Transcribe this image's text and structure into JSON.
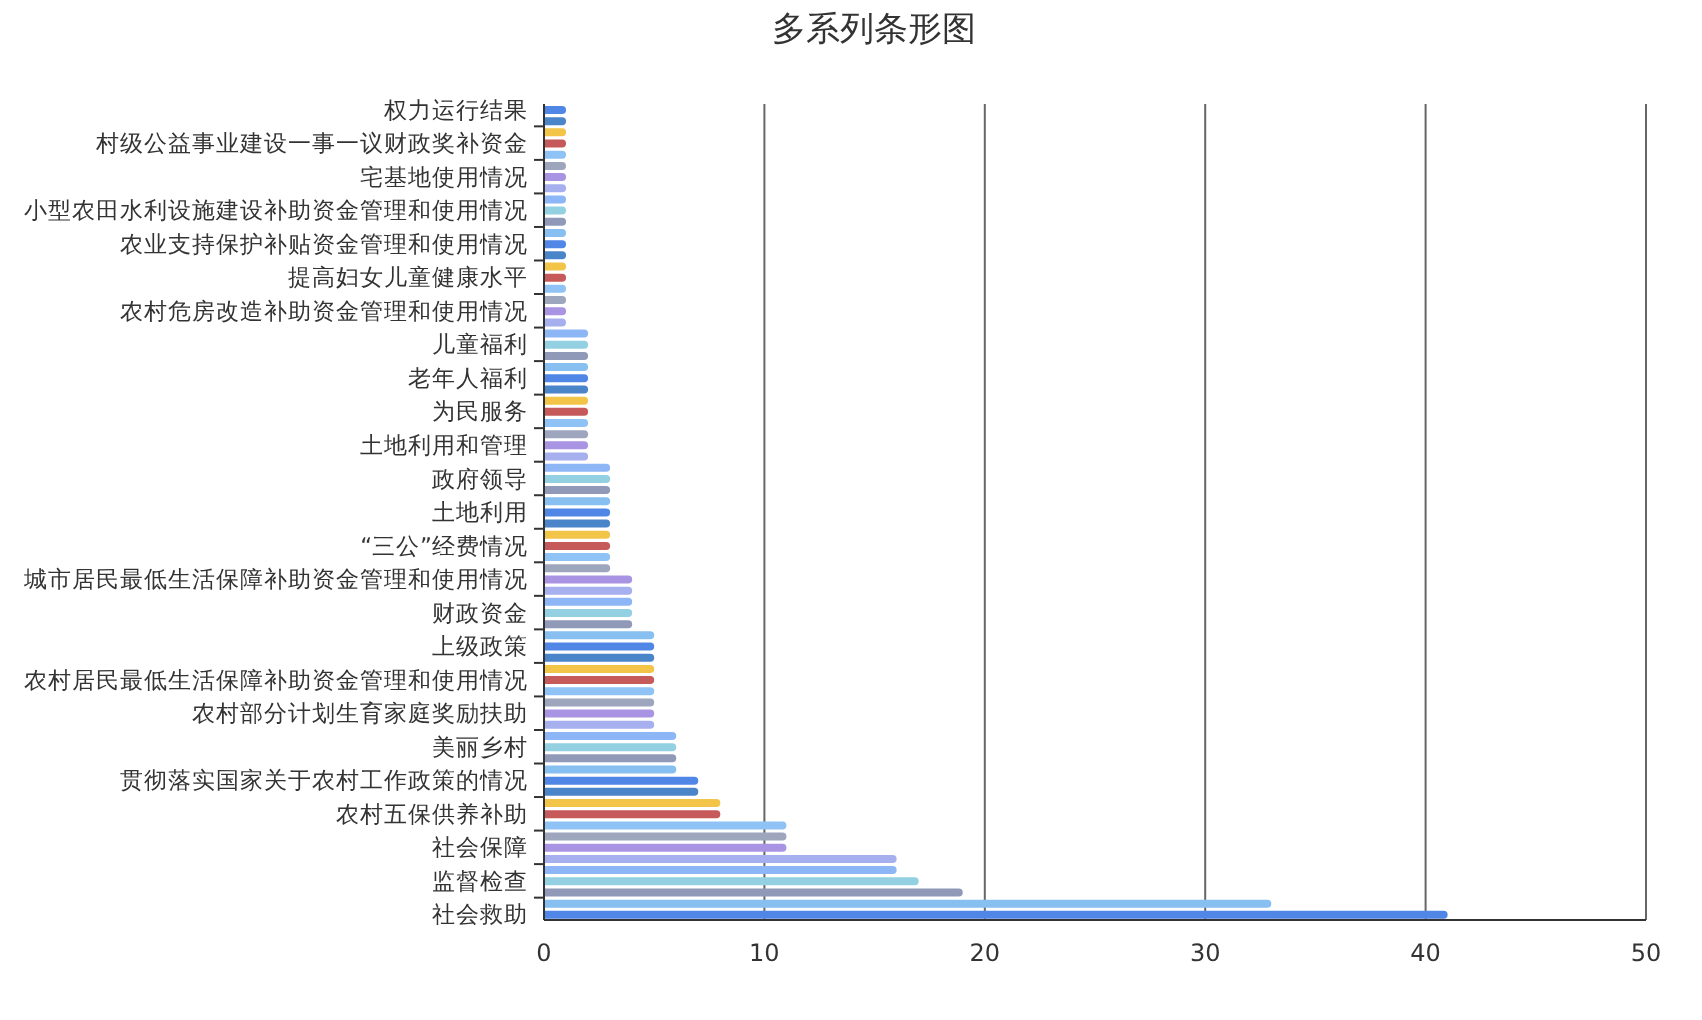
{
  "chart_data": {
    "type": "bar",
    "orientation": "horizontal",
    "title": "多系列条形图",
    "categories": [
      "权力运行结果",
      null,
      null,
      "村级公益事业建设一事一议财政奖补资金",
      null,
      null,
      "宅基地使用情况",
      null,
      null,
      "小型农田水利设施建设补助资金管理和使用情况",
      null,
      null,
      "农业支持保护补贴资金管理和使用情况",
      null,
      null,
      "提高妇女儿童健康水平",
      null,
      null,
      "农村危房改造补助资金管理和使用情况",
      null,
      null,
      "儿童福利",
      null,
      null,
      "老年人福利",
      null,
      null,
      "为民服务",
      null,
      null,
      "土地利用和管理",
      null,
      null,
      "政府领导",
      null,
      null,
      "土地利用",
      null,
      null,
      "“三公”经费情况",
      null,
      null,
      "城市居民最低生活保障补助资金管理和使用情况",
      null,
      null,
      "财政资金",
      null,
      null,
      "上级政策",
      null,
      null,
      "农村居民最低生活保障补助资金管理和使用情况",
      null,
      null,
      "农村部分计划生育家庭奖励扶助",
      null,
      null,
      "美丽乡村",
      null,
      null,
      "贯彻落实国家关于农村工作政策的情况",
      null,
      null,
      "农村五保供养补助",
      null,
      null,
      "社会保障",
      null,
      null,
      "监督检查",
      null,
      null,
      "社会救助"
    ],
    "values": [
      1,
      1,
      1,
      1,
      1,
      1,
      1,
      1,
      1,
      1,
      1,
      1,
      1,
      1,
      1,
      1,
      1,
      1,
      1,
      1,
      2,
      2,
      2,
      2,
      2,
      2,
      2,
      2,
      2,
      2,
      2,
      2,
      3,
      3,
      3,
      3,
      3,
      3,
      3,
      3,
      3,
      3,
      4,
      4,
      4,
      4,
      4,
      5,
      5,
      5,
      5,
      5,
      5,
      5,
      5,
      5,
      6,
      6,
      6,
      6,
      7,
      7,
      8,
      8,
      11,
      11,
      11,
      16,
      16,
      17,
      19,
      33,
      41
    ],
    "colors": [
      "#5087e6",
      "#4a84c9",
      "#f2c447",
      "#c65a5a",
      "#8fc3f5",
      "#9ea6bd",
      "#a993e3",
      "#a7b0ee",
      "#8db6f6",
      "#92d0e2",
      "#9099b8",
      "#86bff0",
      "#5087e6",
      "#4a84c9",
      "#f2c447",
      "#c65a5a",
      "#8fc3f5",
      "#9ea6bd",
      "#a993e3",
      "#a7b0ee",
      "#8db6f6",
      "#92d0e2",
      "#9099b8",
      "#86bff0",
      "#5087e6",
      "#4a84c9",
      "#f2c447",
      "#c65a5a",
      "#8fc3f5",
      "#9ea6bd",
      "#a993e3",
      "#a7b0ee",
      "#8db6f6",
      "#92d0e2",
      "#9099b8",
      "#86bff0",
      "#5087e6",
      "#4a84c9",
      "#f2c447",
      "#c65a5a",
      "#8fc3f5",
      "#9ea6bd",
      "#a993e3",
      "#a7b0ee",
      "#8db6f6",
      "#92d0e2",
      "#9099b8",
      "#86bff0",
      "#5087e6",
      "#4a84c9",
      "#f2c447",
      "#c65a5a",
      "#8fc3f5",
      "#9ea6bd",
      "#a993e3",
      "#a7b0ee",
      "#8db6f6",
      "#92d0e2",
      "#9099b8",
      "#86bff0",
      "#5087e6",
      "#4a84c9",
      "#f2c447",
      "#c65a5a",
      "#8fc3f5",
      "#9ea6bd",
      "#a993e3",
      "#a7b0ee",
      "#8db6f6",
      "#92d0e2",
      "#9099b8",
      "#86bff0",
      "#5087e6"
    ],
    "xlim": [
      0,
      50
    ],
    "xticks": [
      0,
      10,
      20,
      30,
      40,
      50
    ],
    "grid": "x"
  }
}
